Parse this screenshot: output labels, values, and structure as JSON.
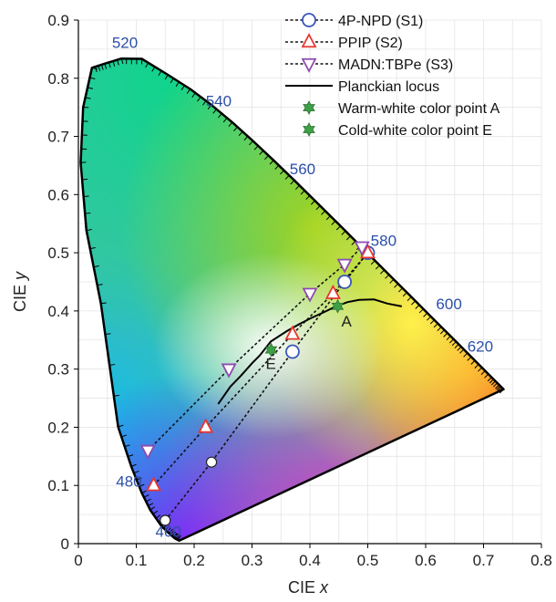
{
  "chart_data": {
    "type": "scatter",
    "xlabel": "CIE x",
    "ylabel": "CIE y",
    "xlim": [
      0,
      0.8
    ],
    "ylim": [
      0,
      0.9
    ],
    "x_ticks": [
      "0",
      "0.1",
      "0.2",
      "0.3",
      "0.4",
      "0.5",
      "0.6",
      "0.7",
      "0.8"
    ],
    "y_ticks": [
      "0",
      "0.1",
      "0.2",
      "0.3",
      "0.4",
      "0.5",
      "0.6",
      "0.7",
      "0.8",
      "0.9"
    ],
    "grid": true,
    "legend_position": "top-right",
    "series": [
      {
        "name": "4P-NPD (S1)",
        "marker": "circle",
        "color": "#3b56b8",
        "points": [
          [
            0.15,
            0.04
          ],
          [
            0.23,
            0.14
          ],
          [
            0.37,
            0.33
          ],
          [
            0.46,
            0.45
          ],
          [
            0.5,
            0.5
          ]
        ]
      },
      {
        "name": "PPIP (S2)",
        "marker": "triangle-up",
        "color": "#e8362e",
        "points": [
          [
            0.13,
            0.1
          ],
          [
            0.22,
            0.2
          ],
          [
            0.37,
            0.36
          ],
          [
            0.44,
            0.43
          ],
          [
            0.5,
            0.5
          ]
        ]
      },
      {
        "name": "MADN:TBPe (S3)",
        "marker": "triangle-down",
        "color": "#8e4ab0",
        "points": [
          [
            0.12,
            0.16
          ],
          [
            0.26,
            0.3
          ],
          [
            0.4,
            0.43
          ],
          [
            0.46,
            0.48
          ],
          [
            0.49,
            0.51
          ]
        ]
      }
    ],
    "planckian_locus": {
      "name": "Planckian locus",
      "points": [
        [
          0.2415,
          0.24
        ],
        [
          0.2626,
          0.27
        ],
        [
          0.2807,
          0.2883
        ],
        [
          0.3003,
          0.3103
        ],
        [
          0.3135,
          0.3236
        ],
        [
          0.3325,
          0.3475
        ],
        [
          0.3611,
          0.3659
        ],
        [
          0.3804,
          0.3768
        ],
        [
          0.4015,
          0.3874
        ],
        [
          0.4238,
          0.3976
        ],
        [
          0.4457,
          0.4081
        ],
        [
          0.4652,
          0.4152
        ],
        [
          0.485,
          0.419
        ],
        [
          0.5109,
          0.4197
        ],
        [
          0.5338,
          0.4127
        ],
        [
          0.5587,
          0.4079
        ]
      ]
    },
    "special_points": [
      {
        "name": "Warm-white color point A",
        "label": "A",
        "x": 0.448,
        "y": 0.408,
        "color": "#3da146"
      },
      {
        "name": "Cold-white color point E",
        "label": "E",
        "x": 0.333,
        "y": 0.333,
        "color": "#3da146"
      }
    ],
    "spectral_locus": {
      "labels": [
        "460",
        "480",
        "520",
        "540",
        "560",
        "580",
        "600",
        "620"
      ],
      "points": [
        [
          0.7347,
          0.2653
        ],
        [
          0.73,
          0.27
        ],
        [
          0.72,
          0.28
        ],
        [
          0.7079,
          0.292
        ],
        [
          0.6915,
          0.3083
        ],
        [
          0.6701,
          0.3296
        ],
        [
          0.6441,
          0.3555
        ],
        [
          0.6148,
          0.3848
        ],
        [
          0.5837,
          0.4159
        ],
        [
          0.5519,
          0.4474
        ],
        [
          0.5125,
          0.4866
        ],
        [
          0.4788,
          0.5202
        ],
        [
          0.4441,
          0.5547
        ],
        [
          0.4087,
          0.5896
        ],
        [
          0.3731,
          0.6245
        ],
        [
          0.3373,
          0.6589
        ],
        [
          0.3016,
          0.6923
        ],
        [
          0.2658,
          0.7243
        ],
        [
          0.2296,
          0.7543
        ],
        [
          0.1547,
          0.8059
        ],
        [
          0.1096,
          0.8334
        ],
        [
          0.0743,
          0.8338
        ],
        [
          0.0454,
          0.8251
        ],
        [
          0.0082,
          0.5384
        ],
        [
          0.0139,
          0.7502
        ],
        [
          0.0235,
          0.4127
        ],
        [
          0.0389,
          0.6548
        ],
        [
          0.0454,
          0.295
        ],
        [
          0.0913,
          0.1327
        ],
        [
          0.1096,
          0.0868
        ],
        [
          0.1241,
          0.0578
        ],
        [
          0.144,
          0.0297
        ],
        [
          0.1566,
          0.0177
        ],
        [
          0.1666,
          0.0089
        ],
        [
          0.1741,
          0.005
        ]
      ]
    }
  }
}
